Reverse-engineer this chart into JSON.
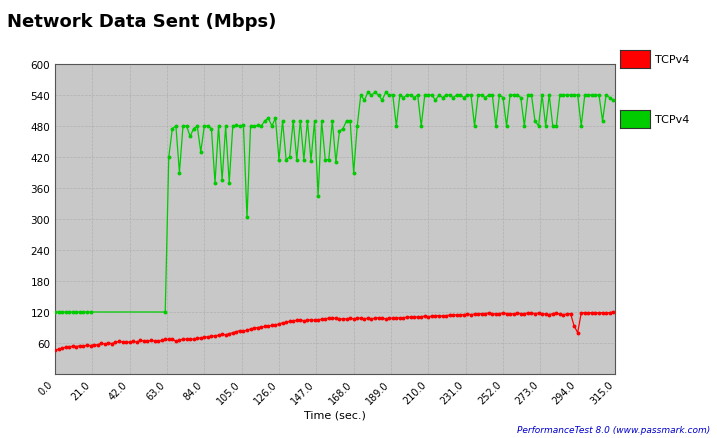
{
  "title": "Network Data Sent (Mbps)",
  "xlabel": "Time (sec.)",
  "xlim": [
    0.0,
    315.0
  ],
  "ylim": [
    0,
    600
  ],
  "yticks": [
    0,
    60,
    120,
    180,
    240,
    300,
    360,
    420,
    480,
    540,
    600
  ],
  "xticks": [
    0.0,
    21.0,
    42.0,
    63.0,
    84.0,
    105.0,
    126.0,
    147.0,
    168.0,
    189.0,
    210.0,
    231.0,
    252.0,
    273.0,
    294.0,
    315.0
  ],
  "bg_color": "#c8c8c8",
  "fig_color": "#ffffff",
  "grid_color": "#b0b0b0",
  "legend1_label": "TCPv4",
  "legend1_color": "#ff0000",
  "legend2_label": "TCPv4",
  "legend2_color": "#00cc00",
  "watermark": "PerformanceTest 8.0 (www.passmark.com)",
  "red_x": [
    0,
    2,
    4,
    6,
    8,
    10,
    12,
    14,
    16,
    18,
    20,
    22,
    24,
    26,
    28,
    30,
    32,
    34,
    36,
    38,
    40,
    42,
    44,
    46,
    48,
    50,
    52,
    54,
    56,
    58,
    60,
    62,
    64,
    66,
    68,
    70,
    72,
    74,
    76,
    78,
    80,
    82,
    84,
    86,
    88,
    90,
    92,
    94,
    96,
    98,
    100,
    102,
    104,
    106,
    108,
    110,
    112,
    114,
    116,
    118,
    120,
    122,
    124,
    126,
    128,
    130,
    132,
    134,
    136,
    138,
    140,
    142,
    144,
    146,
    148,
    150,
    152,
    154,
    156,
    158,
    160,
    162,
    164,
    166,
    168,
    170,
    172,
    174,
    176,
    178,
    180,
    182,
    184,
    186,
    188,
    190,
    192,
    194,
    196,
    198,
    200,
    202,
    204,
    206,
    208,
    210,
    212,
    214,
    216,
    218,
    220,
    222,
    224,
    226,
    228,
    230,
    232,
    234,
    236,
    238,
    240,
    242,
    244,
    246,
    248,
    250,
    252,
    254,
    256,
    258,
    260,
    262,
    264,
    266,
    268,
    270,
    272,
    274,
    276,
    278,
    280,
    282,
    284,
    286,
    288,
    290,
    292,
    294,
    296,
    298,
    300,
    302,
    304,
    306,
    308,
    310,
    312,
    314
  ],
  "red_y": [
    46,
    48,
    50,
    52,
    52,
    54,
    53,
    55,
    54,
    56,
    55,
    57,
    56,
    60,
    58,
    60,
    59,
    61,
    63,
    62,
    61,
    62,
    63,
    62,
    65,
    64,
    63,
    65,
    64,
    63,
    65,
    67,
    67,
    68,
    63,
    65,
    68,
    67,
    68,
    67,
    69,
    70,
    71,
    72,
    73,
    74,
    75,
    77,
    76,
    78,
    80,
    82,
    84,
    83,
    85,
    87,
    89,
    90,
    91,
    92,
    93,
    94,
    95,
    97,
    99,
    100,
    102,
    103,
    104,
    105,
    103,
    104,
    105,
    104,
    105,
    106,
    107,
    108,
    108,
    108,
    107,
    106,
    107,
    108,
    107,
    108,
    108,
    107,
    108,
    107,
    108,
    109,
    108,
    107,
    108,
    108,
    109,
    108,
    109,
    110,
    110,
    111,
    110,
    111,
    112,
    111,
    112,
    113,
    113,
    112,
    113,
    114,
    115,
    114,
    115,
    115,
    116,
    115,
    116,
    116,
    117,
    117,
    118,
    117,
    116,
    117,
    118,
    117,
    117,
    116,
    118,
    117,
    117,
    118,
    118,
    117,
    118,
    117,
    116,
    115,
    117,
    118,
    116,
    115,
    116,
    117,
    93,
    80,
    118,
    119,
    118,
    119,
    119,
    118,
    119,
    118,
    119,
    120
  ],
  "green_x": [
    0,
    2,
    4,
    6,
    8,
    10,
    12,
    14,
    16,
    18,
    20,
    62,
    64,
    66,
    68,
    70,
    72,
    74,
    76,
    78,
    80,
    82,
    84,
    86,
    88,
    90,
    92,
    94,
    96,
    98,
    100,
    102,
    104,
    106,
    108,
    110,
    112,
    114,
    116,
    118,
    120,
    122,
    124,
    126,
    128,
    130,
    132,
    134,
    136,
    138,
    140,
    142,
    144,
    146,
    148,
    150,
    152,
    154,
    156,
    158,
    160,
    162,
    164,
    166,
    168,
    170,
    172,
    174,
    176,
    178,
    180,
    182,
    184,
    186,
    188,
    190,
    192,
    194,
    196,
    198,
    200,
    202,
    204,
    206,
    208,
    210,
    212,
    214,
    216,
    218,
    220,
    222,
    224,
    226,
    228,
    230,
    232,
    234,
    236,
    238,
    240,
    242,
    244,
    246,
    248,
    250,
    252,
    254,
    256,
    258,
    260,
    262,
    264,
    266,
    268,
    270,
    272,
    274,
    276,
    278,
    280,
    282,
    284,
    286,
    288,
    290,
    292,
    294,
    296,
    298,
    300,
    302,
    304,
    306,
    308,
    310,
    312,
    314
  ],
  "green_y": [
    120,
    120,
    120,
    120,
    120,
    120,
    120,
    120,
    120,
    120,
    120,
    120,
    420,
    475,
    480,
    390,
    480,
    480,
    460,
    475,
    480,
    430,
    480,
    480,
    475,
    370,
    480,
    375,
    480,
    370,
    480,
    481,
    480,
    481,
    303,
    480,
    480,
    481,
    480,
    490,
    495,
    480,
    495,
    415,
    490,
    415,
    420,
    490,
    415,
    490,
    415,
    490,
    413,
    490,
    345,
    490,
    415,
    415,
    490,
    410,
    470,
    475,
    490,
    490,
    390,
    480,
    540,
    530,
    545,
    540,
    545,
    540,
    530,
    545,
    540,
    540,
    480,
    540,
    535,
    540,
    540,
    535,
    540,
    480,
    540,
    540,
    540,
    530,
    540,
    535,
    540,
    540,
    535,
    540,
    540,
    535,
    540,
    540,
    480,
    540,
    540,
    535,
    540,
    540,
    480,
    540,
    535,
    480,
    540,
    540,
    540,
    535,
    480,
    540,
    540,
    490,
    480,
    540,
    480,
    540,
    480,
    480,
    540,
    540,
    540,
    540,
    540,
    540,
    480,
    540,
    540,
    540,
    540,
    540,
    490,
    540,
    535,
    530
  ]
}
